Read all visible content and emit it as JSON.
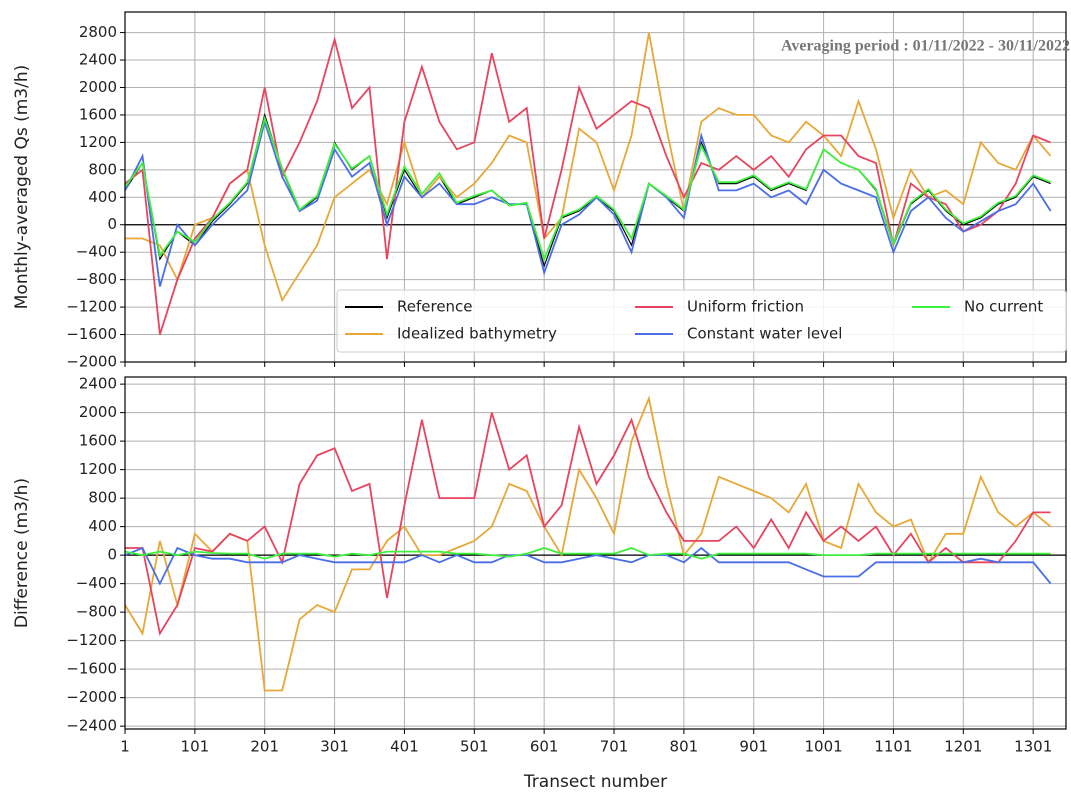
{
  "chart_data": [
    {
      "type": "line",
      "annotation": "Averaging period : 01/11/2022 - 30/11/2022",
      "y_label": "Monthly-averaged Qs (m3/h)",
      "grid": true,
      "legend": "lower right",
      "x": [
        1,
        26,
        51,
        76,
        101,
        126,
        151,
        176,
        201,
        226,
        251,
        276,
        301,
        326,
        351,
        376,
        401,
        426,
        451,
        476,
        501,
        526,
        551,
        576,
        601,
        626,
        651,
        676,
        701,
        726,
        751,
        776,
        801,
        826,
        851,
        876,
        901,
        926,
        951,
        976,
        1001,
        1026,
        1051,
        1076,
        1101,
        1126,
        1151,
        1176,
        1201,
        1226,
        1251,
        1276,
        1301,
        1326
      ],
      "xlim": [
        1,
        1348
      ],
      "xticks": [
        1,
        101,
        201,
        301,
        401,
        501,
        601,
        701,
        801,
        901,
        1001,
        1101,
        1201,
        1301
      ],
      "ylim": [
        -2000,
        3100
      ],
      "yticks": [
        {
          "value": -2000,
          "label": "−2000"
        },
        {
          "value": -1600,
          "label": "−1600"
        },
        {
          "value": -1200,
          "label": "−1200"
        },
        {
          "value": -800,
          "label": "−800"
        },
        {
          "value": -400,
          "label": "−400"
        },
        0,
        400,
        800,
        1200,
        1600,
        2000,
        2400,
        2800
      ],
      "series": [
        {
          "name": "Reference",
          "color": "#000000",
          "values": [
            500,
            900,
            -500,
            -100,
            -300,
            50,
            300,
            600,
            1600,
            800,
            200,
            400,
            1200,
            800,
            1000,
            100,
            800,
            400,
            700,
            300,
            400,
            500,
            300,
            300,
            -600,
            100,
            200,
            400,
            200,
            -300,
            600,
            400,
            200,
            1200,
            600,
            600,
            700,
            500,
            600,
            500,
            1100,
            900,
            800,
            500,
            -300,
            300,
            500,
            200,
            0,
            100,
            300,
            400,
            700,
            600
          ]
        },
        {
          "name": "Idealized bathymetry",
          "color": "#e8a838",
          "values": [
            -200,
            -200,
            -300,
            -800,
            0,
            100,
            600,
            800,
            -300,
            -1100,
            -700,
            -300,
            400,
            600,
            800,
            300,
            1200,
            400,
            700,
            400,
            600,
            900,
            1300,
            1200,
            -200,
            100,
            1400,
            1200,
            500,
            1300,
            2800,
            1400,
            200,
            1500,
            1700,
            1600,
            1600,
            1300,
            1200,
            1500,
            1300,
            1000,
            1800,
            1100,
            100,
            800,
            400,
            500,
            300,
            1200,
            900,
            800,
            1300,
            1000
          ]
        },
        {
          "name": "Uniform friction",
          "color": "#e8435f",
          "values": [
            600,
            800,
            -1600,
            -800,
            -200,
            100,
            600,
            800,
            2000,
            700,
            1200,
            1800,
            2700,
            1700,
            2000,
            -500,
            1500,
            2300,
            1500,
            1100,
            1200,
            2500,
            1500,
            1700,
            -200,
            800,
            2000,
            1400,
            1600,
            1800,
            1700,
            1000,
            400,
            900,
            800,
            1000,
            800,
            1000,
            700,
            1100,
            1300,
            1300,
            1000,
            900,
            -300,
            600,
            400,
            300,
            -100,
            0,
            200,
            600,
            1300,
            1200
          ]
        },
        {
          "name": "Constant water level",
          "color": "#4a6ee8",
          "values": [
            500,
            1000,
            -900,
            0,
            -300,
            0,
            250,
            500,
            1500,
            700,
            200,
            350,
            1100,
            700,
            900,
            0,
            700,
            400,
            600,
            300,
            300,
            400,
            300,
            300,
            -700,
            0,
            150,
            400,
            150,
            -400,
            600,
            400,
            100,
            1300,
            500,
            500,
            600,
            400,
            500,
            300,
            800,
            600,
            500,
            400,
            -400,
            200,
            400,
            100,
            -100,
            50,
            200,
            300,
            600,
            200
          ]
        },
        {
          "name": "No current",
          "color": "#3ef03e",
          "values": [
            550,
            900,
            -450,
            -100,
            -250,
            80,
            320,
            620,
            1550,
            820,
            220,
            420,
            1180,
            820,
            1000,
            150,
            850,
            450,
            750,
            320,
            420,
            500,
            280,
            320,
            -500,
            120,
            220,
            420,
            220,
            -200,
            600,
            420,
            220,
            1150,
            620,
            620,
            720,
            520,
            620,
            520,
            1100,
            900,
            800,
            520,
            -280,
            320,
            520,
            220,
            20,
            120,
            320,
            420,
            720,
            620
          ]
        }
      ]
    },
    {
      "type": "line",
      "y_label": "Difference (m3/h)",
      "x_label": "Transect number",
      "grid": true,
      "x": [
        1,
        26,
        51,
        76,
        101,
        126,
        151,
        176,
        201,
        226,
        251,
        276,
        301,
        326,
        351,
        376,
        401,
        426,
        451,
        476,
        501,
        526,
        551,
        576,
        601,
        626,
        651,
        676,
        701,
        726,
        751,
        776,
        801,
        826,
        851,
        876,
        901,
        926,
        951,
        976,
        1001,
        1026,
        1051,
        1076,
        1101,
        1126,
        1151,
        1176,
        1201,
        1226,
        1251,
        1276,
        1301,
        1326
      ],
      "xlim": [
        1,
        1348
      ],
      "xticks": [
        1,
        101,
        201,
        301,
        401,
        501,
        601,
        701,
        801,
        901,
        1001,
        1101,
        1201,
        1301
      ],
      "ylim": [
        -2440,
        2500
      ],
      "yticks": [
        {
          "value": -2400,
          "label": "−2400"
        },
        {
          "value": -2000,
          "label": "−2000"
        },
        {
          "value": -1600,
          "label": "−1600"
        },
        {
          "value": -1200,
          "label": "−1200"
        },
        {
          "value": -800,
          "label": "−800"
        },
        {
          "value": -400,
          "label": "−400"
        },
        0,
        400,
        800,
        1200,
        1600,
        2000,
        2400
      ],
      "series": [
        {
          "color": "#e8a838",
          "values": [
            -700,
            -1100,
            200,
            -700,
            300,
            50,
            300,
            200,
            -1900,
            -1900,
            -900,
            -700,
            -800,
            -200,
            -200,
            200,
            400,
            0,
            0,
            100,
            200,
            400,
            1000,
            900,
            400,
            0,
            1200,
            800,
            300,
            1600,
            2200,
            1000,
            0,
            300,
            1100,
            1000,
            900,
            800,
            600,
            1000,
            200,
            100,
            1000,
            600,
            400,
            500,
            -100,
            300,
            300,
            1100,
            600,
            400,
            600,
            400
          ]
        },
        {
          "color": "#e8435f",
          "values": [
            100,
            100,
            -1100,
            -700,
            100,
            50,
            300,
            200,
            400,
            -100,
            1000,
            1400,
            1500,
            900,
            1000,
            -600,
            700,
            1900,
            800,
            800,
            800,
            2000,
            1200,
            1400,
            400,
            700,
            1800,
            1000,
            1400,
            1900,
            1100,
            600,
            200,
            200,
            200,
            400,
            100,
            500,
            100,
            600,
            200,
            400,
            200,
            400,
            0,
            300,
            -100,
            100,
            -100,
            -100,
            -100,
            200,
            600,
            600
          ]
        },
        {
          "color": "#4a6ee8",
          "values": [
            0,
            100,
            -400,
            100,
            0,
            -50,
            -50,
            -100,
            -100,
            -100,
            0,
            -50,
            -100,
            -100,
            -100,
            -100,
            -100,
            0,
            -100,
            0,
            -100,
            -100,
            0,
            0,
            -100,
            -100,
            -50,
            0,
            -50,
            -100,
            0,
            0,
            -100,
            100,
            -100,
            -100,
            -100,
            -100,
            -100,
            -200,
            -300,
            -300,
            -300,
            -100,
            -100,
            -100,
            -100,
            -100,
            -100,
            -50,
            -100,
            -100,
            -100,
            -400
          ]
        },
        {
          "color": "#3ef03e",
          "values": [
            50,
            0,
            50,
            0,
            50,
            30,
            20,
            20,
            -50,
            20,
            20,
            20,
            -20,
            20,
            0,
            50,
            50,
            50,
            50,
            20,
            20,
            0,
            -20,
            20,
            100,
            20,
            20,
            20,
            20,
            100,
            0,
            20,
            20,
            -50,
            20,
            20,
            20,
            20,
            20,
            20,
            0,
            0,
            0,
            20,
            20,
            20,
            20,
            20,
            20,
            20,
            20,
            20,
            20,
            20
          ]
        }
      ]
    }
  ]
}
